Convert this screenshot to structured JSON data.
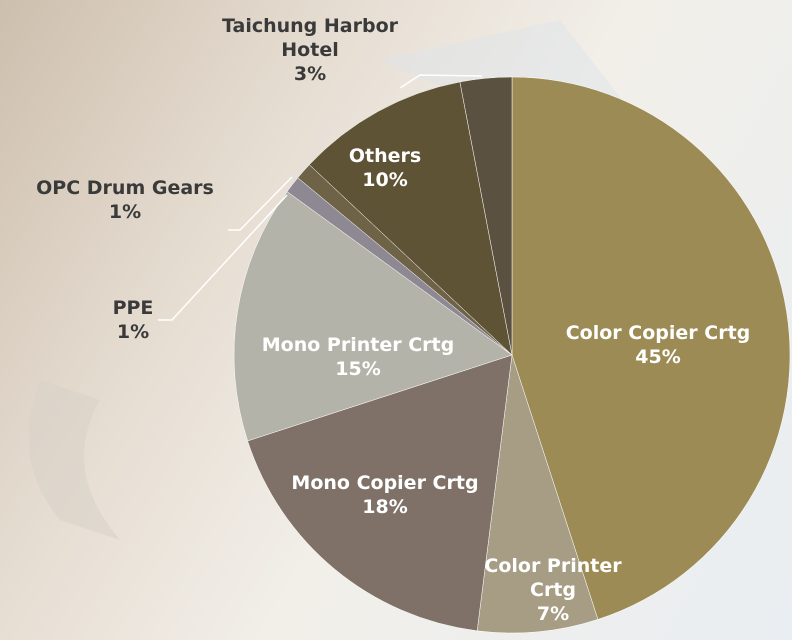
{
  "chart_data": {
    "type": "pie",
    "categories": [
      "Color Copier Crtg",
      "Color Printer Crtg",
      "Mono Copier Crtg",
      "Mono Printer Crtg",
      "PPE",
      "OPC Drum Gears",
      "Others",
      "Taichung Harbor Hotel"
    ],
    "values": [
      45,
      7,
      18,
      15,
      1,
      1,
      10,
      3
    ],
    "value_labels": [
      "45%",
      "7%",
      "18%",
      "15%",
      "1%",
      "1%",
      "10%",
      "3%"
    ],
    "colors": [
      "#9c8b55",
      "#a69d84",
      "#7f7068",
      "#b4b3a9",
      "#8e8893",
      "#6e6247",
      "#5f5336",
      "#5b5140"
    ]
  }
}
